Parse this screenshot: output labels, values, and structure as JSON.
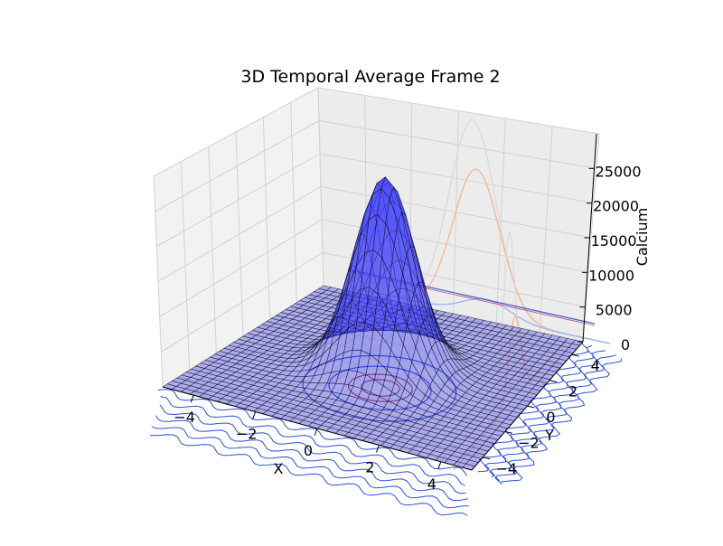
{
  "chart_data": {
    "type": "surface3d",
    "title": "3D Temporal Average Frame 2",
    "xlabel": "X",
    "ylabel": "Y",
    "zlabel": "Calcium",
    "xlim": [
      -5,
      5
    ],
    "ylim": [
      -5,
      5
    ],
    "zlim": [
      0,
      30000
    ],
    "x_ticks": [
      "−4",
      "−2",
      "0",
      "2",
      "4"
    ],
    "y_ticks": [
      "−4",
      "−2",
      "0",
      "2",
      "4"
    ],
    "z_ticks": [
      "0",
      "5000",
      "10000",
      "15000",
      "20000",
      "25000"
    ],
    "grid": true,
    "surface": {
      "peak_x": 0,
      "peak_y": 0,
      "peak_value": 28000,
      "sigma": 1.0,
      "color": "#4040ff",
      "edge_color": "#000000"
    },
    "projections": {
      "x_wall_profiles": [
        {
          "offset": -1.0,
          "peak": 28000,
          "color": "#dcdcdc"
        },
        {
          "offset": -0.5,
          "peak": 21000,
          "color": "#f4b89a"
        },
        {
          "offset": 0.8,
          "peak": 2500,
          "color": "#9ab8f0"
        }
      ],
      "y_wall_profiles": [
        {
          "offset": 0.0,
          "peak": 25000,
          "color": "#dcdcdc"
        },
        {
          "offset": 0.5,
          "peak": 12000,
          "color": "#f4b89a"
        }
      ],
      "floor_contour_color": "#2e4fd6",
      "center_contour_color": "#b0305a"
    }
  }
}
